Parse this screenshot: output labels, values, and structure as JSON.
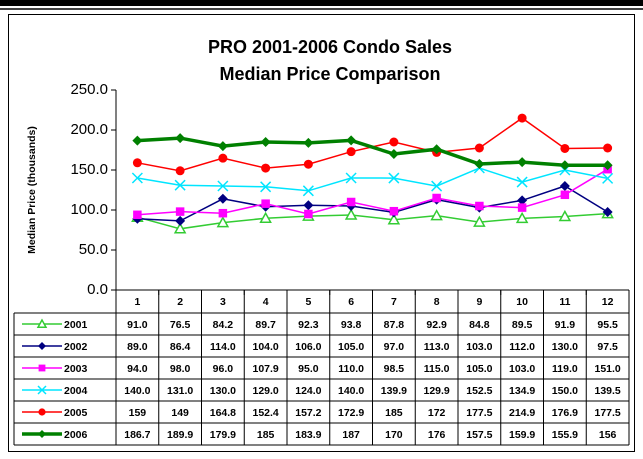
{
  "chart_data": {
    "type": "line",
    "title": "PRO 2001-2006 Condo Sales",
    "subtitle": "Median Price Comparison",
    "y_label": "Median Price (thousands)",
    "categories": [
      "1",
      "2",
      "3",
      "4",
      "5",
      "6",
      "7",
      "8",
      "9",
      "10",
      "11",
      "12"
    ],
    "ylim": [
      0,
      250
    ],
    "yticks": [
      {
        "value": 0,
        "label": "0.0"
      },
      {
        "value": 50,
        "label": "50.0"
      },
      {
        "value": 100,
        "label": "100.0"
      },
      {
        "value": 150,
        "label": "150.0"
      },
      {
        "value": 200,
        "label": "200.0"
      },
      {
        "value": 250,
        "label": "250.0"
      }
    ],
    "grid": false,
    "series": [
      {
        "name": "2001",
        "color": "#33cc33",
        "marker": "triangle",
        "line_width": 1.5,
        "values": [
          91.0,
          76.5,
          84.2,
          89.7,
          92.3,
          93.8,
          87.8,
          92.9,
          84.8,
          89.5,
          91.9,
          95.5
        ],
        "value_labels": [
          "91.0",
          "76.5",
          "84.2",
          "89.7",
          "92.3",
          "93.8",
          "87.8",
          "92.9",
          "84.8",
          "89.5",
          "91.9",
          "95.5"
        ]
      },
      {
        "name": "2002",
        "color": "#000080",
        "marker": "diamond",
        "line_width": 1.5,
        "values": [
          89.0,
          86.4,
          114.0,
          104.0,
          106.0,
          105.0,
          97.0,
          113.0,
          103.0,
          112.0,
          130.0,
          97.5
        ],
        "value_labels": [
          "89.0",
          "86.4",
          "114.0",
          "104.0",
          "106.0",
          "105.0",
          "97.0",
          "113.0",
          "103.0",
          "112.0",
          "130.0",
          "97.5"
        ]
      },
      {
        "name": "2003",
        "color": "#ff00ff",
        "marker": "square",
        "line_width": 1.5,
        "values": [
          94.0,
          98.0,
          96.0,
          107.9,
          95.0,
          110.0,
          98.5,
          115.0,
          105.0,
          103.0,
          119.0,
          151.0
        ],
        "value_labels": [
          "94.0",
          "98.0",
          "96.0",
          "107.9",
          "95.0",
          "110.0",
          "98.5",
          "115.0",
          "105.0",
          "103.0",
          "119.0",
          "151.0"
        ]
      },
      {
        "name": "2004",
        "color": "#00e5ff",
        "marker": "x",
        "line_width": 1.5,
        "values": [
          140.0,
          131.0,
          130.0,
          129.0,
          124.0,
          140.0,
          139.9,
          129.9,
          152.5,
          134.9,
          150.0,
          139.5
        ],
        "value_labels": [
          "140.0",
          "131.0",
          "130.0",
          "129.0",
          "124.0",
          "140.0",
          "139.9",
          "129.9",
          "152.5",
          "134.9",
          "150.0",
          "139.5"
        ]
      },
      {
        "name": "2005",
        "color": "#ff0000",
        "marker": "circle",
        "line_width": 1.5,
        "values": [
          159,
          149,
          164.8,
          152.4,
          157.2,
          172.9,
          185,
          172,
          177.5,
          214.9,
          176.9,
          177.5
        ]
      },
      {
        "name": "2006",
        "color": "#008000",
        "marker": "diamond",
        "line_width": 3.5,
        "values": [
          186.7,
          189.9,
          179.9,
          185,
          183.9,
          187,
          170,
          176,
          157.5,
          159.9,
          155.9,
          156
        ]
      }
    ]
  }
}
